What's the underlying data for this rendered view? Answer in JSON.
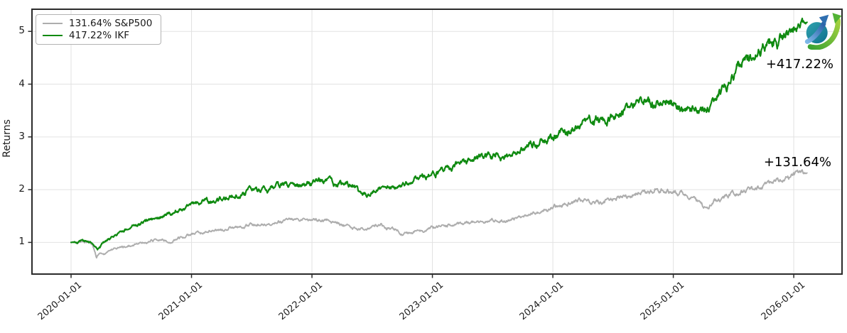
{
  "figure": {
    "background": "#ffffff",
    "grid_color": "#e2e2e2",
    "spine_color": "#2b2b2b",
    "tick_color": "#2b2b2b",
    "text_color": "#1c1c1c"
  },
  "logo": {
    "name": "growth-arrows-globe",
    "globe_color_top": "#2fa3ae",
    "globe_color_bottom": "#0e6e8e",
    "blue_arrow_color": "#2f6fb0",
    "green_arrow_color": "#52b335"
  },
  "chart_data": {
    "type": "line",
    "title": "",
    "xlabel": "",
    "ylabel": "Returns",
    "grid": true,
    "legend_position": "upper left",
    "x_axis": {
      "tick_years": [
        0,
        1,
        2,
        3,
        4,
        5,
        6
      ],
      "tick_labels": [
        "2020-01-01",
        "2021-01-01",
        "2022-01-01",
        "2023-01-01",
        "2024-01-01",
        "2025-01-01",
        "2026-01-01"
      ],
      "lim": [
        -0.3245,
        6.4007
      ]
    },
    "y_axis": {
      "ticks": [
        1,
        2,
        3,
        4,
        5
      ],
      "tick_labels": [
        "1",
        "2",
        "3",
        "4",
        "5"
      ],
      "lim": [
        0.4,
        5.42
      ]
    },
    "series": [
      {
        "name": "S&P500",
        "legend_label": "131.64% S&P500",
        "annotation": "+131.64%",
        "total_return_pct": 131.64,
        "final_multiplier": 2.3164,
        "color": "#adadad",
        "line_width": 1.9,
        "noise": 0.03,
        "anchors": [
          [
            0.0,
            1.0
          ],
          [
            0.08,
            1.01
          ],
          [
            0.14,
            1.03
          ],
          [
            0.18,
            0.95
          ],
          [
            0.21,
            0.72
          ],
          [
            0.24,
            0.8
          ],
          [
            0.27,
            0.76
          ],
          [
            0.33,
            0.85
          ],
          [
            0.42,
            0.91
          ],
          [
            0.5,
            0.95
          ],
          [
            0.58,
            1.0
          ],
          [
            0.67,
            1.04
          ],
          [
            0.75,
            1.05
          ],
          [
            0.83,
            1.03
          ],
          [
            0.92,
            1.1
          ],
          [
            1.0,
            1.16
          ],
          [
            1.08,
            1.19
          ],
          [
            1.17,
            1.23
          ],
          [
            1.25,
            1.27
          ],
          [
            1.33,
            1.29
          ],
          [
            1.42,
            1.32
          ],
          [
            1.5,
            1.34
          ],
          [
            1.58,
            1.37
          ],
          [
            1.67,
            1.39
          ],
          [
            1.75,
            1.41
          ],
          [
            1.83,
            1.43
          ],
          [
            1.92,
            1.46
          ],
          [
            2.02,
            1.47
          ],
          [
            2.08,
            1.44
          ],
          [
            2.17,
            1.38
          ],
          [
            2.25,
            1.33
          ],
          [
            2.33,
            1.27
          ],
          [
            2.42,
            1.23
          ],
          [
            2.5,
            1.28
          ],
          [
            2.58,
            1.33
          ],
          [
            2.67,
            1.24
          ],
          [
            2.75,
            1.16
          ],
          [
            2.83,
            1.22
          ],
          [
            2.92,
            1.23
          ],
          [
            3.0,
            1.27
          ],
          [
            3.08,
            1.29
          ],
          [
            3.17,
            1.32
          ],
          [
            3.25,
            1.35
          ],
          [
            3.33,
            1.38
          ],
          [
            3.42,
            1.41
          ],
          [
            3.5,
            1.42
          ],
          [
            3.58,
            1.38
          ],
          [
            3.67,
            1.43
          ],
          [
            3.75,
            1.47
          ],
          [
            3.83,
            1.52
          ],
          [
            3.92,
            1.6
          ],
          [
            4.0,
            1.67
          ],
          [
            4.08,
            1.72
          ],
          [
            4.17,
            1.76
          ],
          [
            4.25,
            1.8
          ],
          [
            4.33,
            1.78
          ],
          [
            4.42,
            1.75
          ],
          [
            4.5,
            1.82
          ],
          [
            4.58,
            1.88
          ],
          [
            4.67,
            1.9
          ],
          [
            4.75,
            1.93
          ],
          [
            4.83,
            1.97
          ],
          [
            4.92,
            2.0
          ],
          [
            5.0,
            1.95
          ],
          [
            5.08,
            1.91
          ],
          [
            5.17,
            1.85
          ],
          [
            5.23,
            1.73
          ],
          [
            5.27,
            1.62
          ],
          [
            5.33,
            1.76
          ],
          [
            5.4,
            1.86
          ],
          [
            5.47,
            1.93
          ],
          [
            5.55,
            1.97
          ],
          [
            5.63,
            2.02
          ],
          [
            5.71,
            2.06
          ],
          [
            5.79,
            2.1
          ],
          [
            5.87,
            2.15
          ],
          [
            5.94,
            2.2
          ],
          [
            6.0,
            2.25
          ],
          [
            6.06,
            2.3
          ],
          [
            6.11,
            2.3164
          ]
        ]
      },
      {
        "name": "IKF",
        "legend_label": "417.22% IKF",
        "annotation": "+417.22%",
        "total_return_pct": 417.22,
        "final_multiplier": 5.1722,
        "color": "#0f8a10",
        "line_width": 2.2,
        "noise": 0.032,
        "anchors": [
          [
            0.0,
            1.0
          ],
          [
            0.08,
            1.02
          ],
          [
            0.14,
            1.04
          ],
          [
            0.18,
            0.99
          ],
          [
            0.22,
            0.88
          ],
          [
            0.26,
            0.98
          ],
          [
            0.31,
            1.08
          ],
          [
            0.38,
            1.17
          ],
          [
            0.46,
            1.26
          ],
          [
            0.54,
            1.33
          ],
          [
            0.63,
            1.4
          ],
          [
            0.71,
            1.46
          ],
          [
            0.79,
            1.51
          ],
          [
            0.88,
            1.58
          ],
          [
            0.96,
            1.67
          ],
          [
            1.0,
            1.72
          ],
          [
            1.08,
            1.77
          ],
          [
            1.17,
            1.81
          ],
          [
            1.25,
            1.85
          ],
          [
            1.33,
            1.89
          ],
          [
            1.42,
            1.93
          ],
          [
            1.5,
            1.99
          ],
          [
            1.58,
            2.01
          ],
          [
            1.67,
            2.02
          ],
          [
            1.75,
            2.06
          ],
          [
            1.83,
            2.09
          ],
          [
            1.92,
            2.11
          ],
          [
            2.0,
            2.13
          ],
          [
            2.08,
            2.19
          ],
          [
            2.13,
            2.21
          ],
          [
            2.21,
            2.09
          ],
          [
            2.29,
            2.13
          ],
          [
            2.38,
            1.96
          ],
          [
            2.46,
            1.83
          ],
          [
            2.54,
            1.95
          ],
          [
            2.63,
            2.06
          ],
          [
            2.71,
            1.99
          ],
          [
            2.79,
            2.12
          ],
          [
            2.88,
            2.22
          ],
          [
            2.96,
            2.27
          ],
          [
            3.04,
            2.31
          ],
          [
            3.13,
            2.41
          ],
          [
            3.21,
            2.48
          ],
          [
            3.29,
            2.52
          ],
          [
            3.38,
            2.58
          ],
          [
            3.46,
            2.66
          ],
          [
            3.54,
            2.68
          ],
          [
            3.63,
            2.62
          ],
          [
            3.71,
            2.77
          ],
          [
            3.79,
            2.83
          ],
          [
            3.88,
            2.9
          ],
          [
            3.96,
            2.98
          ],
          [
            4.04,
            3.05
          ],
          [
            4.13,
            3.12
          ],
          [
            4.21,
            3.22
          ],
          [
            4.29,
            3.28
          ],
          [
            4.38,
            3.32
          ],
          [
            4.46,
            3.37
          ],
          [
            4.54,
            3.43
          ],
          [
            4.63,
            3.52
          ],
          [
            4.71,
            3.6
          ],
          [
            4.79,
            3.66
          ],
          [
            4.85,
            3.55
          ],
          [
            4.92,
            3.7
          ],
          [
            5.0,
            3.66
          ],
          [
            5.08,
            3.52
          ],
          [
            5.15,
            3.56
          ],
          [
            5.22,
            3.46
          ],
          [
            5.29,
            3.56
          ],
          [
            5.36,
            3.8
          ],
          [
            5.43,
            3.98
          ],
          [
            5.5,
            4.18
          ],
          [
            5.57,
            4.4
          ],
          [
            5.64,
            4.55
          ],
          [
            5.71,
            4.7
          ],
          [
            5.78,
            4.82
          ],
          [
            5.83,
            4.89
          ],
          [
            5.86,
            4.73
          ],
          [
            5.9,
            4.9
          ],
          [
            5.94,
            5.0
          ],
          [
            5.98,
            5.07
          ],
          [
            6.02,
            5.11
          ],
          [
            6.05,
            5.13
          ],
          [
            6.08,
            5.12
          ],
          [
            6.11,
            5.1722
          ]
        ]
      }
    ]
  }
}
